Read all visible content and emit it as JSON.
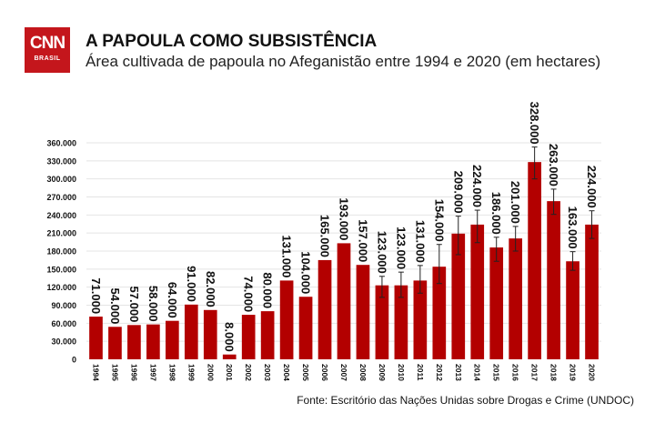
{
  "logo": {
    "text": "CNN",
    "sub": "BRASIL"
  },
  "header": {
    "title": "A PAPOULA COMO SUBSISTÊNCIA",
    "subtitle": "Área cultivada de papoula no Afeganistão entre 1994 e 2020 (em hectares)"
  },
  "source": "Fonte: Escritório das Nações Unidas sobre Drogas e Crime (UNDOC)",
  "chart_data": {
    "type": "bar",
    "title": "A PAPOULA COMO SUBSISTÊNCIA",
    "subtitle": "Área cultivada de papoula no Afeganistão entre 1994 e 2020 (em hectares)",
    "categories": [
      "1994",
      "1995",
      "1996",
      "1997",
      "1998",
      "1999",
      "2000",
      "2001",
      "2002",
      "2003",
      "2004",
      "2005",
      "2006",
      "2007",
      "2008",
      "2009",
      "2010",
      "2011",
      "2012",
      "2013",
      "2014",
      "2015",
      "2016",
      "2017",
      "2018",
      "2019",
      "2020"
    ],
    "values": [
      71000,
      54000,
      57000,
      58000,
      64000,
      91000,
      82000,
      8000,
      74000,
      80000,
      131000,
      104000,
      165000,
      193000,
      157000,
      123000,
      123000,
      131000,
      154000,
      209000,
      224000,
      186000,
      201000,
      328000,
      263000,
      163000,
      224000
    ],
    "data_labels": [
      "71.000",
      "54.000",
      "57.000",
      "58.000",
      "64.000",
      "91.000",
      "82.000",
      "8.000",
      "74.000",
      "80.000",
      "131.000",
      "104.000",
      "165.000",
      "193.000",
      "157.000",
      "123.000",
      "123.000",
      "131.000",
      "154.000",
      "209.000",
      "224.000",
      "186.000",
      "201.000",
      "328.000",
      "263.000",
      "163.000",
      "224.000"
    ],
    "error_bars": {
      "2009": [
        103000,
        138000
      ],
      "2010": [
        103000,
        145000
      ],
      "2011": [
        110000,
        156000
      ],
      "2012": [
        126000,
        191000
      ],
      "2013": [
        174000,
        238000
      ],
      "2014": [
        194000,
        248000
      ],
      "2015": [
        163000,
        203000
      ],
      "2016": [
        180000,
        221000
      ],
      "2017": [
        300000,
        353000
      ],
      "2018": [
        241000,
        283000
      ],
      "2019": [
        148000,
        179000
      ],
      "2020": [
        201000,
        247000
      ]
    },
    "ylim": [
      0,
      360000
    ],
    "yticks": [
      0,
      30000,
      60000,
      90000,
      120000,
      150000,
      180000,
      210000,
      240000,
      270000,
      300000,
      330000,
      360000
    ],
    "ytick_labels": [
      "0",
      "30.000",
      "60.000",
      "90.000",
      "120.000",
      "150.000",
      "180.000",
      "210.000",
      "240.000",
      "270.000",
      "300.000",
      "330.000",
      "360.000"
    ],
    "grid": true,
    "bar_color": "#b30000",
    "xlabel": "",
    "ylabel": ""
  }
}
